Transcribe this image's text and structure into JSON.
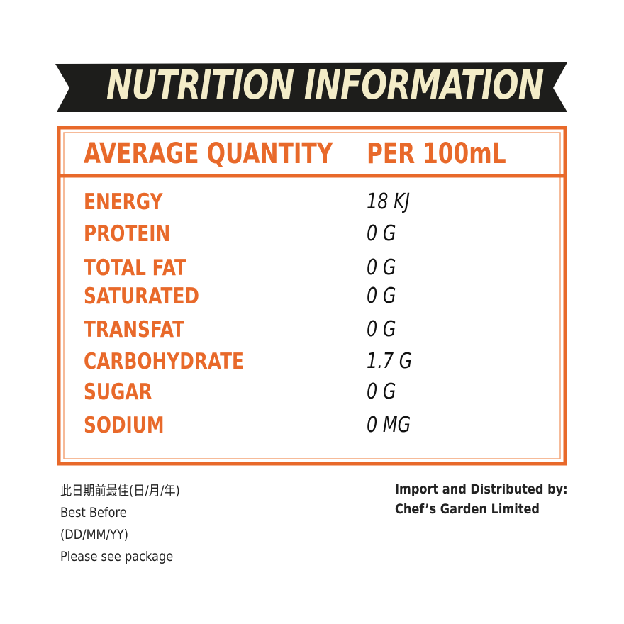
{
  "header": {
    "title": "NUTRITION INFORMATION"
  },
  "table": {
    "header": [
      "AVERAGE QUANTITY",
      "PER 100mL"
    ],
    "rows": [
      [
        "ENERGY",
        "18 KJ"
      ],
      [
        "PROTEIN",
        "0 G"
      ],
      [
        "TOTAL FAT",
        "0 G"
      ],
      [
        "SATURATED",
        "0 G"
      ],
      [
        "TRANSFAT",
        "0 G"
      ],
      [
        "CARBOHYDRATE",
        "1.7 G"
      ],
      [
        "SUGAR",
        "0 G"
      ],
      [
        "SODIUM",
        "0 MG"
      ]
    ]
  },
  "footer": {
    "left": [
      "此日期前最佳(日/月/年)",
      "Best Before",
      "(DD/MM/YY)",
      "Please see package"
    ],
    "right": [
      "Import and Distributed by:",
      "Chef’s Garden Limited"
    ]
  }
}
